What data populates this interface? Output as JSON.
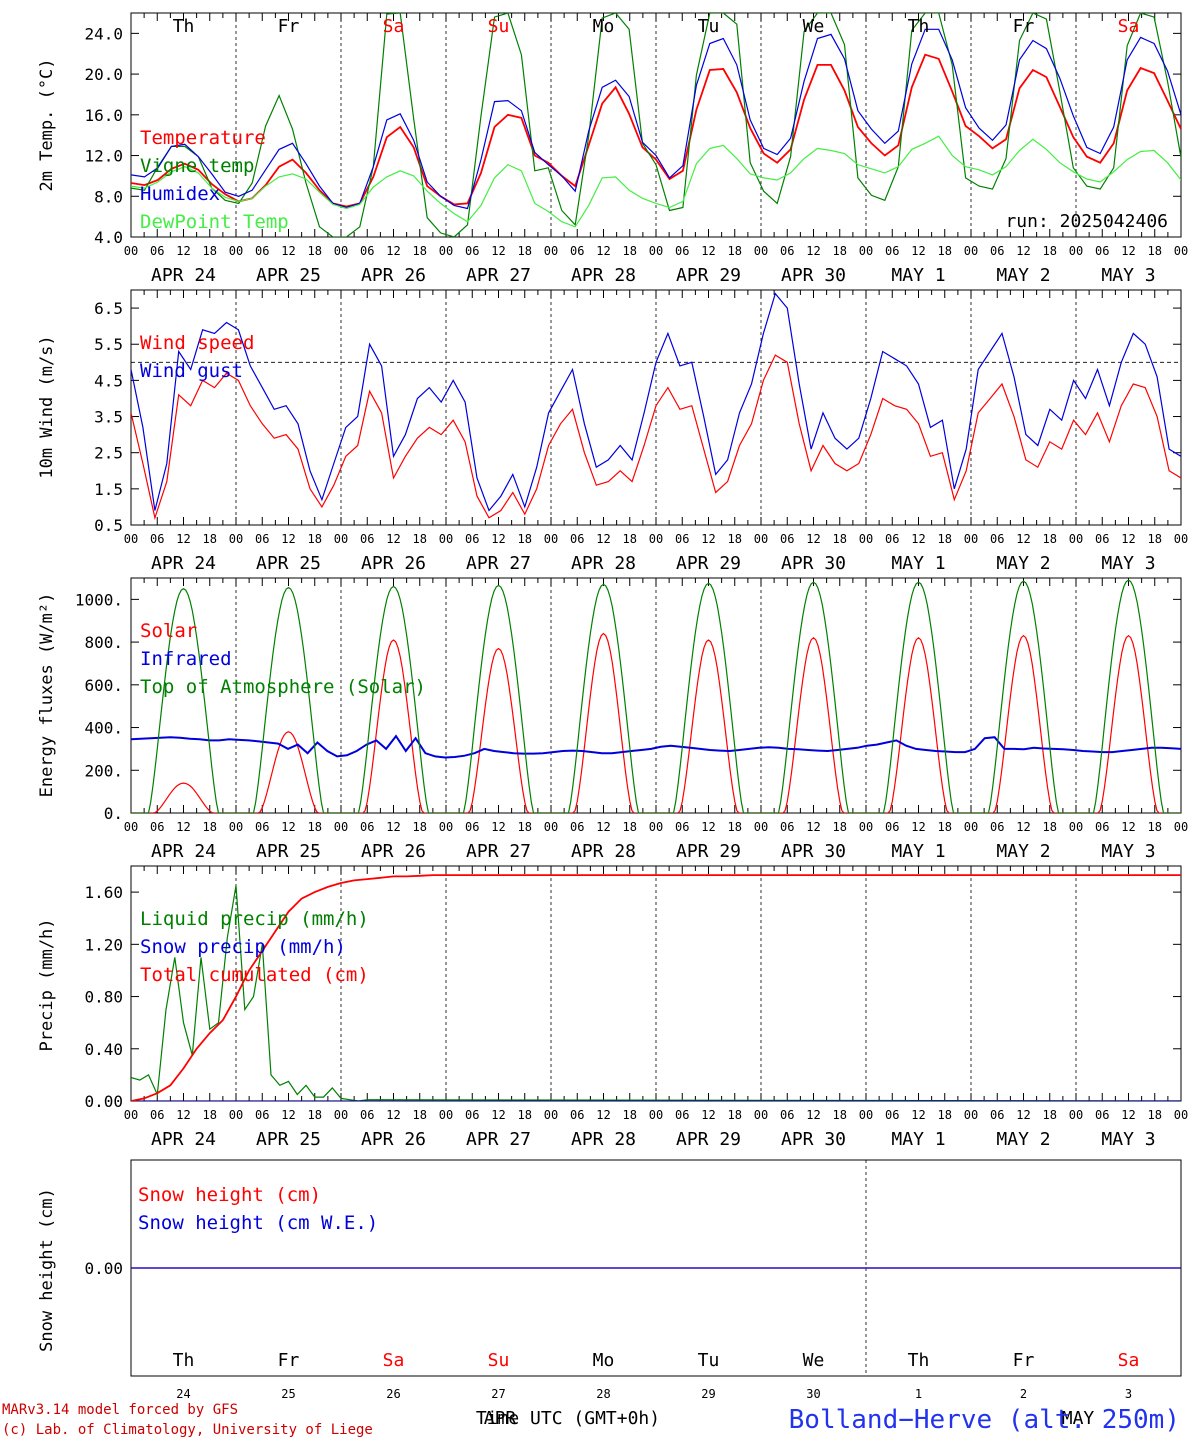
{
  "chart_data": [
    {
      "type": "line",
      "panel": "temperature",
      "ylabel": "2m Temp. (°C)",
      "ylim": [
        4.0,
        26.0
      ],
      "yticks": [
        "4.0",
        "8.0",
        "12.0",
        "16.0",
        "20.0",
        "24.0"
      ],
      "annotation": "run: 2025042406",
      "x_start_date": "APR 24 00 UTC",
      "x_step_hours": 3,
      "series": [
        {
          "name": "Temperature",
          "color": "#ff0000",
          "values": [
            9.3,
            9.1,
            9.6,
            10.7,
            11.2,
            10.6,
            9.2,
            8.2,
            7.5,
            7.8,
            9.1,
            10.9,
            11.6,
            10.3,
            8.6,
            7.3,
            7.0,
            7.3,
            9.9,
            13.8,
            14.8,
            12.8,
            9.0,
            8.0,
            7.2,
            7.3,
            10.3,
            14.8,
            16.0,
            15.7,
            12.0,
            11.3,
            10.0,
            9.0,
            13.0,
            17.1,
            18.7,
            16.1,
            12.8,
            11.6,
            9.7,
            10.5,
            16.5,
            20.4,
            20.5,
            18.2,
            14.7,
            12.2,
            11.3,
            12.6,
            17.5,
            20.9,
            20.9,
            18.4,
            14.8,
            13.2,
            12.0,
            13.0,
            18.7,
            21.9,
            21.5,
            18.3,
            14.9,
            13.9,
            12.7,
            13.6,
            18.6,
            20.4,
            19.7,
            16.8,
            13.8,
            11.9,
            11.3,
            13.2,
            18.4,
            20.6,
            20.1,
            17.4,
            14.6
          ]
        },
        {
          "name": "Vigne temp",
          "color": "#008000",
          "values": [
            8.8,
            8.6,
            10.9,
            12.9,
            12.9,
            11.9,
            8.8,
            7.6,
            7.3,
            9.3,
            14.9,
            17.9,
            14.6,
            9.3,
            5.0,
            4.0,
            4.0,
            5.0,
            10.9,
            25.9,
            26.0,
            15.6,
            5.9,
            4.4,
            4.0,
            5.2,
            15.9,
            25.6,
            26.0,
            21.9,
            10.5,
            10.8,
            6.6,
            5.2,
            13.9,
            25.5,
            26.0,
            24.4,
            13.2,
            11.1,
            6.6,
            6.9,
            19.9,
            26.0,
            26.0,
            24.9,
            11.3,
            8.5,
            7.3,
            11.9,
            24.2,
            26.0,
            26.0,
            22.9,
            9.8,
            8.1,
            7.6,
            10.9,
            24.3,
            26.0,
            26.0,
            20.9,
            9.8,
            9.0,
            8.7,
            11.7,
            23.3,
            26.0,
            25.4,
            18.3,
            10.8,
            9.0,
            8.7,
            10.8,
            22.8,
            26.0,
            25.6,
            19.3,
            11.8
          ]
        },
        {
          "name": "Humidex",
          "color": "#0000dd",
          "values": [
            10.1,
            9.9,
            10.8,
            12.9,
            13.1,
            11.9,
            10.2,
            8.4,
            8.0,
            8.6,
            10.6,
            12.6,
            13.2,
            11.2,
            9.0,
            7.3,
            6.9,
            7.3,
            10.9,
            15.5,
            16.1,
            13.5,
            9.4,
            8.0,
            7.1,
            6.8,
            11.6,
            17.3,
            17.4,
            16.4,
            12.3,
            11.1,
            10.0,
            8.5,
            14.4,
            18.7,
            19.4,
            17.8,
            13.3,
            12.0,
            9.8,
            11.0,
            18.9,
            23.0,
            23.5,
            20.9,
            15.5,
            12.7,
            12.1,
            13.7,
            19.3,
            23.5,
            23.9,
            21.5,
            16.4,
            14.6,
            13.2,
            14.4,
            21.0,
            24.4,
            24.4,
            21.4,
            16.7,
            14.7,
            13.5,
            15.0,
            21.4,
            23.3,
            22.5,
            19.6,
            15.9,
            12.8,
            12.2,
            14.8,
            21.4,
            23.6,
            23.0,
            20.3,
            16.0
          ]
        },
        {
          "name": "DewPoint Temp",
          "color": "#44ee44",
          "values": [
            9.0,
            8.8,
            9.4,
            10.4,
            10.9,
            10.3,
            8.8,
            7.9,
            7.5,
            7.8,
            9.0,
            9.9,
            10.2,
            9.7,
            8.4,
            7.2,
            6.8,
            7.2,
            8.9,
            9.9,
            10.5,
            10.0,
            8.5,
            7.3,
            6.3,
            5.5,
            7.1,
            9.8,
            11.1,
            10.5,
            7.3,
            6.5,
            5.5,
            5.0,
            7.1,
            9.8,
            9.9,
            8.6,
            7.8,
            7.3,
            6.9,
            7.5,
            11.2,
            12.7,
            13.0,
            11.7,
            10.2,
            9.8,
            9.6,
            10.3,
            11.7,
            12.7,
            12.5,
            12.2,
            11.1,
            10.7,
            10.3,
            10.9,
            12.6,
            13.2,
            13.9,
            12.0,
            10.9,
            10.6,
            10.1,
            10.9,
            12.5,
            13.6,
            12.6,
            11.3,
            10.4,
            9.7,
            9.4,
            10.4,
            11.6,
            12.4,
            12.5,
            11.3,
            9.6
          ]
        }
      ]
    },
    {
      "type": "line",
      "panel": "wind",
      "ylabel": "10m Wind (m/s)",
      "ylim": [
        0.5,
        7.0
      ],
      "yticks": [
        "0.5",
        "1.5",
        "2.5",
        "3.5",
        "4.5",
        "5.5",
        "6.5"
      ],
      "hline": 5.0,
      "series": [
        {
          "name": "Wind speed",
          "color": "#ff0000",
          "values": [
            3.6,
            2.2,
            0.7,
            1.7,
            4.1,
            3.8,
            4.5,
            4.3,
            4.7,
            4.5,
            3.8,
            3.3,
            2.9,
            3.0,
            2.6,
            1.5,
            1.0,
            1.6,
            2.4,
            2.7,
            4.2,
            3.6,
            1.8,
            2.4,
            2.9,
            3.2,
            3.0,
            3.4,
            2.8,
            1.3,
            0.7,
            0.9,
            1.4,
            0.8,
            1.5,
            2.7,
            3.3,
            3.7,
            2.5,
            1.6,
            1.7,
            2.0,
            1.7,
            2.7,
            3.8,
            4.3,
            3.7,
            3.8,
            2.6,
            1.4,
            1.7,
            2.7,
            3.3,
            4.5,
            5.2,
            5.0,
            3.3,
            2.0,
            2.7,
            2.2,
            2.0,
            2.2,
            3.0,
            4.0,
            3.8,
            3.7,
            3.3,
            2.4,
            2.5,
            1.2,
            2.0,
            3.6,
            4.0,
            4.4,
            3.5,
            2.3,
            2.1,
            2.8,
            2.6,
            3.4,
            3.0,
            3.6,
            2.8,
            3.8,
            4.4,
            4.3,
            3.5,
            2.0,
            1.8
          ]
        },
        {
          "name": "Wind gust",
          "color": "#0000dd",
          "values": [
            4.8,
            3.2,
            0.9,
            2.2,
            5.3,
            4.8,
            5.9,
            5.8,
            6.1,
            5.9,
            4.9,
            4.3,
            3.7,
            3.8,
            3.3,
            2.0,
            1.2,
            2.2,
            3.2,
            3.5,
            5.5,
            4.9,
            2.4,
            3.0,
            4.0,
            4.3,
            3.9,
            4.5,
            3.9,
            1.8,
            0.9,
            1.3,
            1.9,
            1.0,
            2.1,
            3.6,
            4.2,
            4.8,
            3.3,
            2.1,
            2.3,
            2.7,
            2.3,
            3.6,
            5.0,
            5.8,
            4.9,
            5.0,
            3.5,
            1.9,
            2.3,
            3.6,
            4.4,
            5.8,
            6.9,
            6.5,
            4.4,
            2.6,
            3.6,
            2.9,
            2.6,
            2.9,
            4.0,
            5.3,
            5.1,
            4.9,
            4.4,
            3.2,
            3.4,
            1.5,
            2.6,
            4.8,
            5.3,
            5.8,
            4.6,
            3.0,
            2.7,
            3.7,
            3.4,
            4.5,
            4.0,
            4.8,
            3.8,
            5.0,
            5.8,
            5.5,
            4.6,
            2.6,
            2.4
          ]
        }
      ]
    },
    {
      "type": "line",
      "panel": "energy",
      "ylabel": "Energy fluxes (W/m²)",
      "ylim": [
        0,
        1100
      ],
      "yticks": [
        "0.",
        "200.",
        "400.",
        "600.",
        "800.",
        "1000."
      ],
      "series": [
        {
          "name": "Solar",
          "color": "#ff0000",
          "peaks": [
            140,
            380,
            810,
            770,
            840,
            810,
            820,
            820,
            830,
            830
          ]
        },
        {
          "name": "Infrared",
          "color": "#0000dd",
          "values": [
            345,
            348,
            350,
            352,
            355,
            352,
            348,
            345,
            340,
            340,
            345,
            342,
            340,
            335,
            330,
            325,
            300,
            320,
            280,
            330,
            290,
            265,
            270,
            290,
            320,
            340,
            300,
            360,
            290,
            350,
            280,
            265,
            260,
            262,
            268,
            280,
            300,
            290,
            285,
            280,
            278,
            278,
            280,
            285,
            290,
            292,
            290,
            285,
            280,
            280,
            285,
            290,
            295,
            300,
            310,
            315,
            310,
            305,
            300,
            295,
            292,
            290,
            295,
            300,
            305,
            308,
            305,
            300,
            298,
            295,
            292,
            290,
            295,
            300,
            305,
            315,
            320,
            330,
            340,
            315,
            300,
            295,
            290,
            288,
            285,
            285,
            300,
            350,
            355,
            300,
            300,
            298,
            305,
            302,
            300,
            298,
            295,
            290,
            288,
            285,
            285,
            290,
            295,
            300,
            305,
            305,
            303,
            300
          ]
        },
        {
          "name": "Top of Atmosphere (Solar)",
          "color": "#008000",
          "peaks": [
            1050,
            1055,
            1060,
            1065,
            1070,
            1075,
            1080,
            1080,
            1085,
            1090
          ]
        }
      ]
    },
    {
      "type": "line",
      "panel": "precip",
      "ylabel": "Precip (mm/h)",
      "ylim": [
        0.0,
        1.8
      ],
      "yticks": [
        "0.00",
        "0.40",
        "0.80",
        "1.20",
        "1.60"
      ],
      "series": [
        {
          "name": "Liquid precip (mm/h)",
          "color": "#008000",
          "values": [
            0.18,
            0.16,
            0.2,
            0.05,
            0.7,
            1.1,
            0.6,
            0.35,
            1.1,
            0.55,
            0.6,
            1.25,
            1.65,
            0.7,
            0.8,
            1.2,
            0.2,
            0.12,
            0.15,
            0.05,
            0.12,
            0.03,
            0.03,
            0.1,
            0.02,
            0.01,
            0.0,
            0.01
          ]
        },
        {
          "name": "Snow precip (mm/h)",
          "color": "#0000dd",
          "values": [
            0,
            0
          ]
        },
        {
          "name": "Total cumulated (cm)",
          "color": "#ff0000",
          "values": [
            0.0,
            0.02,
            0.06,
            0.12,
            0.25,
            0.4,
            0.52,
            0.62,
            0.8,
            1.0,
            1.15,
            1.3,
            1.45,
            1.55,
            1.6,
            1.64,
            1.67,
            1.69,
            1.7,
            1.71,
            1.72,
            1.72,
            1.725,
            1.73
          ]
        }
      ]
    },
    {
      "type": "line",
      "panel": "snow",
      "ylabel": "Snow height (cm)",
      "yticks": [
        "0.00"
      ],
      "series": [
        {
          "name": "Snow height (cm)",
          "color": "#ff0000",
          "values": [
            0,
            0
          ]
        },
        {
          "name": "Snow height (cm W.E.)",
          "color": "#0000dd",
          "values": [
            0,
            0
          ]
        }
      ]
    }
  ],
  "x_axis": {
    "hour_labels": [
      "00",
      "06",
      "12",
      "18"
    ],
    "date_labels": [
      "APR 24",
      "APR 25",
      "APR 26",
      "APR 27",
      "APR 28",
      "APR 29",
      "APR 30",
      "MAY  1",
      "MAY  2",
      "MAY  3"
    ],
    "day_numbers": [
      "24",
      "25",
      "26",
      "27",
      "28",
      "29",
      "30",
      "1",
      "2",
      "3"
    ],
    "final_hour_label": "00"
  },
  "weekdays": [
    {
      "label": "Th",
      "weekend": false
    },
    {
      "label": "Fr",
      "weekend": false
    },
    {
      "label": "Sa",
      "weekend": true
    },
    {
      "label": "Su",
      "weekend": true
    },
    {
      "label": "Mo",
      "weekend": false
    },
    {
      "label": "Tu",
      "weekend": false
    },
    {
      "label": "We",
      "weekend": false
    },
    {
      "label": "Th",
      "weekend": false
    },
    {
      "label": "Fr",
      "weekend": false
    },
    {
      "label": "Sa",
      "weekend": true
    }
  ],
  "colors": {
    "weekday": "#000000",
    "weekend": "#ff0000",
    "station": "#2233ee",
    "credit": "#cc0000"
  },
  "footer": {
    "model": "MARv3.14 model forced by GFS",
    "credit": "(c) Lab. of Climatology, University of Liege",
    "time_label": "Time UTC (GMT+0h)",
    "apr_label": "APR",
    "may_label": "MAY",
    "station": "Bolland−Herve (alt. 250m)"
  }
}
